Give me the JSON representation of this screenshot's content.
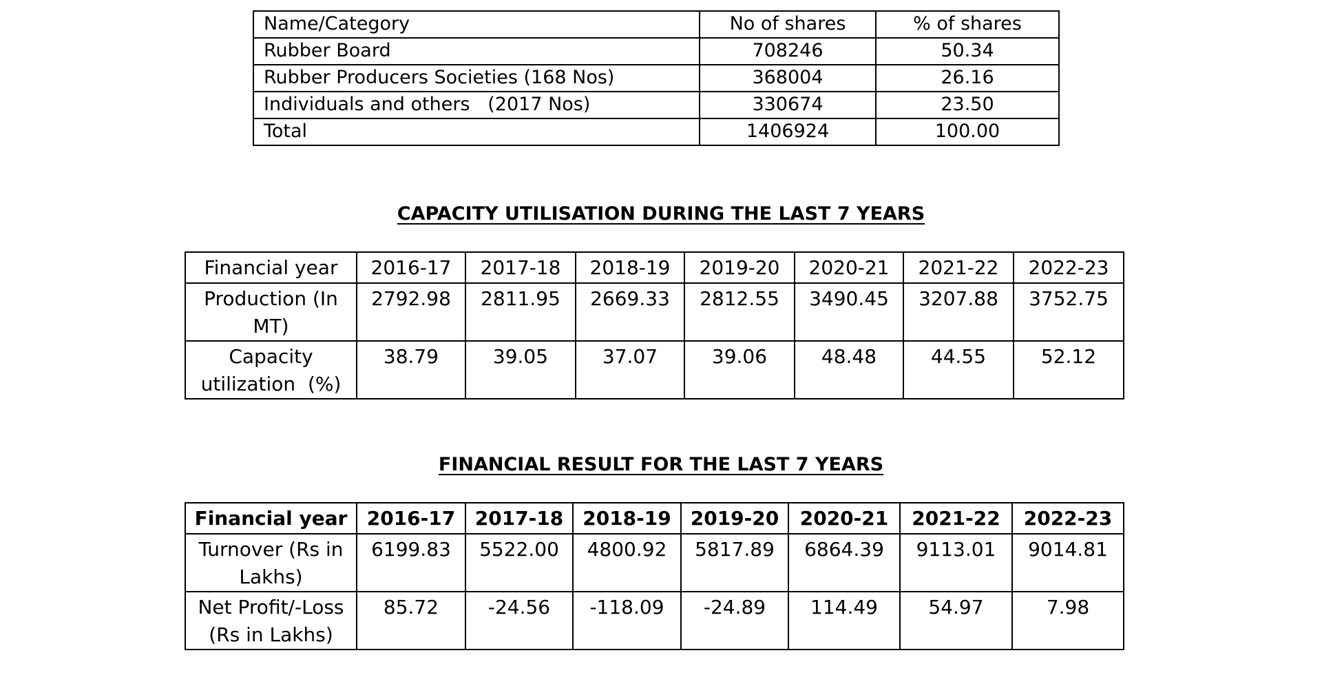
{
  "shareholding": {
    "headers": [
      "Name/Category",
      "No of shares",
      "% of shares"
    ],
    "rows": [
      [
        "Rubber Board",
        "708246",
        "50.34"
      ],
      [
        "Rubber Producers Societies (168 Nos)",
        "368004",
        "26.16"
      ],
      [
        "Individuals and others   (2017 Nos)",
        "330674",
        "23.50"
      ],
      [
        "Total",
        "1406924",
        "100.00"
      ]
    ]
  },
  "capacity": {
    "title": "CAPACITY UTILISATION DURING THE LAST 7 YEARS",
    "header_label": "Financial year",
    "years": [
      "2016-17",
      "2017-18",
      "2018-19",
      "2019-20",
      "2020-21",
      "2021-22",
      "2022-23"
    ],
    "rows": [
      {
        "label": "Production (In MT)",
        "values": [
          "2792.98",
          "2811.95",
          "2669.33",
          "2812.55",
          "3490.45",
          "3207.88",
          "3752.75"
        ]
      },
      {
        "label": "Capacity utilization  (%)",
        "values": [
          "38.79",
          "39.05",
          "37.07",
          "39.06",
          "48.48",
          "44.55",
          "52.12"
        ]
      }
    ]
  },
  "financial": {
    "title": "FINANCIAL RESULT FOR THE LAST 7 YEARS",
    "header_label": "Financial year",
    "years": [
      "2016-17",
      "2017-18",
      "2018-19",
      "2019-20",
      "2020-21",
      "2021-22",
      "2022-23"
    ],
    "rows": [
      {
        "label": "Turnover (Rs in Lakhs)",
        "values": [
          "6199.83",
          "5522.00",
          "4800.92",
          "5817.89",
          "6864.39",
          "9113.01",
          "9014.81"
        ]
      },
      {
        "label": "Net Profit/-Loss (Rs in Lakhs)",
        "values": [
          "85.72",
          "-24.56",
          "-118.09",
          "-24.89",
          "114.49",
          "54.97",
          "7.98"
        ]
      }
    ]
  }
}
